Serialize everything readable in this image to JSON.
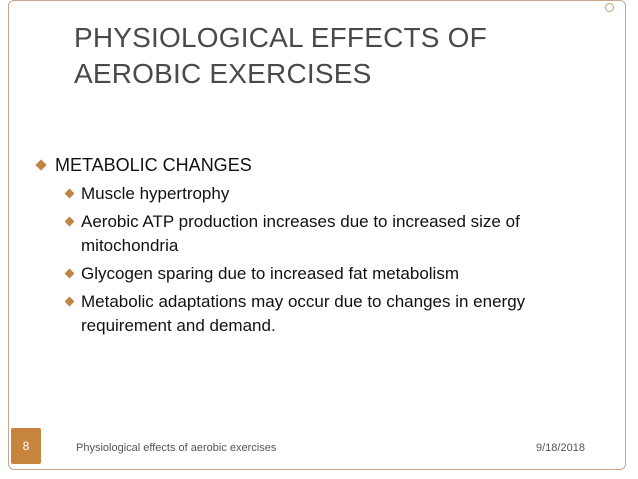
{
  "slide": {
    "title_line1": "PHYSIOLOGICAL EFFECTS OF",
    "title_line2": "AEROBIC EXERCISES",
    "heading_bullet": "METABOLIC CHANGES",
    "sub_bullets": [
      "Muscle hypertrophy",
      "Aerobic  ATP production increases due to increased size of mitochondria",
      "Glycogen sparing due to increased fat metabolism",
      "Metabolic adaptations may occur due to changes in energy requirement and demand."
    ]
  },
  "footer": {
    "slide_number": "8",
    "text": "Physiological effects of aerobic exercises",
    "date": "9/18/2018"
  },
  "colors": {
    "accent": "#c7843d",
    "bullet": "#c08545",
    "frame": "#c9a68a"
  }
}
